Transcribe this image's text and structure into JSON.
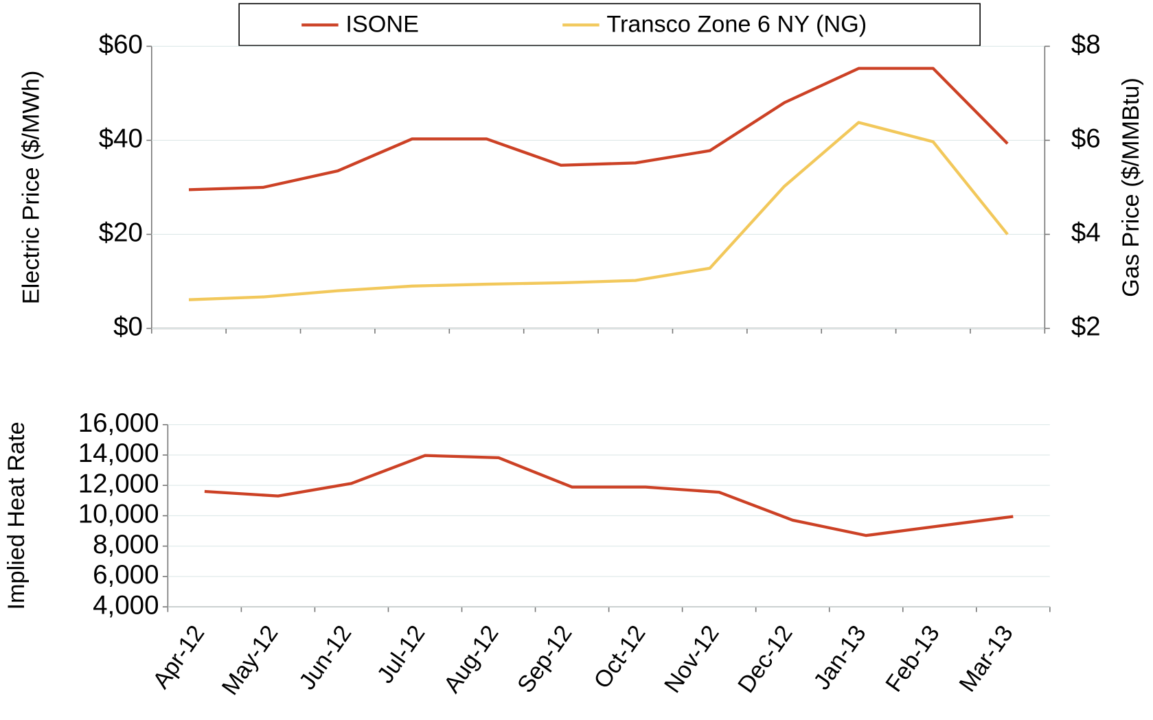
{
  "chart_data": [
    {
      "type": "line",
      "y_label": "Electric Price ($/MWh)",
      "y2_label": "Gas Price ($/MMBtu)",
      "ylim": [
        0,
        60
      ],
      "yticks": [
        {
          "value": 0,
          "label": "$0"
        },
        {
          "value": 20,
          "label": "$20"
        },
        {
          "value": 40,
          "label": "$40"
        },
        {
          "value": 60,
          "label": "$60"
        }
      ],
      "y2lim": [
        2,
        8
      ],
      "y2ticks": [
        {
          "value": 2,
          "label": "$2"
        },
        {
          "value": 4,
          "label": "$4"
        },
        {
          "value": 6,
          "label": "$6"
        },
        {
          "value": 8,
          "label": "$8"
        }
      ],
      "grid": true,
      "legend": "top",
      "series": [
        {
          "name": "ISONE",
          "color": "#cc4125",
          "values": [
            29.5,
            30,
            33.5,
            40.3,
            40.3,
            34.7,
            35.2,
            37.8,
            48,
            55.3,
            55.3,
            39.3
          ]
        },
        {
          "name": "Transco Zone 6 NY (NG)",
          "color": "#f2c85b",
          "axis": "y2",
          "values": [
            2.61,
            2.67,
            2.8,
            2.9,
            2.94,
            2.97,
            3.02,
            3.28,
            5.02,
            6.38,
            5.97,
            4.0
          ]
        }
      ]
    },
    {
      "type": "line",
      "y_label": "Implied Heat Rate",
      "categories": [
        "Apr-12",
        "May-12",
        "Jun-12",
        "Jul-12",
        "Aug-12",
        "Sep-12",
        "Oct-12",
        "Nov-12",
        "Dec-12",
        "Jan-13",
        "Feb-13",
        "Mar-13"
      ],
      "ylim": [
        4000,
        16000
      ],
      "yticks": [
        {
          "value": 4000,
          "label": "4,000"
        },
        {
          "value": 6000,
          "label": "6,000"
        },
        {
          "value": 8000,
          "label": "8,000"
        },
        {
          "value": 10000,
          "label": "10,000"
        },
        {
          "value": 12000,
          "label": "12,000"
        },
        {
          "value": 14000,
          "label": "14,000"
        },
        {
          "value": 16000,
          "label": "16,000"
        }
      ],
      "grid": true,
      "color": "#cc4125",
      "values": [
        11600,
        11300,
        12130,
        13970,
        13820,
        11890,
        11890,
        11550,
        9710,
        8700,
        9330,
        9950
      ]
    }
  ]
}
